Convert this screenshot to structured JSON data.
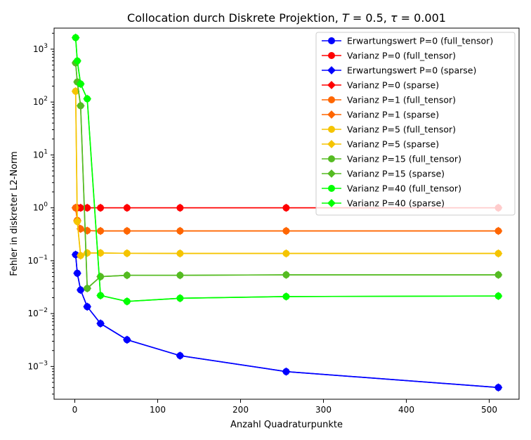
{
  "chart_data": {
    "type": "line",
    "title": "Collocation durch Diskrete Projektion, T = 0.5, τ = 0.001",
    "title_parts": {
      "prefix": "Collocation durch Diskrete Projektion, ",
      "T_sym": "T",
      "T_val": " = 0.5, ",
      "tau_sym": "τ",
      "tau_val": " = 0.001"
    },
    "xlabel": "Anzahl Quadraturpunkte",
    "ylabel": "Fehler in diskreter L2-Norm",
    "xscale": "linear",
    "yscale": "log",
    "xlim": [
      -25,
      536
    ],
    "ylim": [
      0.00024,
      2500
    ],
    "xticks": [
      0,
      100,
      200,
      300,
      400,
      500
    ],
    "yticks": [
      {
        "value": 0.001,
        "base": "10",
        "exp": "−3"
      },
      {
        "value": 0.01,
        "base": "10",
        "exp": "−2"
      },
      {
        "value": 0.1,
        "base": "10",
        "exp": "−1"
      },
      {
        "value": 1,
        "base": "10",
        "exp": "0"
      },
      {
        "value": 10,
        "base": "10",
        "exp": "1"
      },
      {
        "value": 100,
        "base": "10",
        "exp": "2"
      },
      {
        "value": 1000,
        "base": "10",
        "exp": "3"
      }
    ],
    "grid": false,
    "legend_position": "top-right",
    "series": [
      {
        "name": "Erwartungswert P=0 (full_tensor)",
        "color": "#0000ff",
        "marker": "circle",
        "x": [
          1,
          3,
          7,
          15,
          31,
          63,
          127,
          255,
          511
        ],
        "y": [
          0.13,
          0.058,
          0.028,
          0.0135,
          0.0065,
          0.0032,
          0.0016,
          0.0008,
          0.0004
        ]
      },
      {
        "name": "Varianz P=0 (full_tensor)",
        "color": "#ff0000",
        "marker": "circle",
        "x": [
          1,
          3,
          7,
          15,
          31,
          63,
          127,
          255,
          511
        ],
        "y": [
          1.0,
          1.0,
          1.0,
          1.0,
          1.0,
          1.0,
          1.0,
          1.0,
          1.0
        ]
      },
      {
        "name": "Erwartungswert P=0 (sparse)",
        "color": "#0000ff",
        "marker": "diamond",
        "x": [
          1,
          3,
          7,
          15,
          31,
          63,
          127,
          255,
          511
        ],
        "y": [
          0.13,
          0.058,
          0.028,
          0.0135,
          0.0065,
          0.0032,
          0.0016,
          0.0008,
          0.0004
        ]
      },
      {
        "name": "Varianz P=0 (sparse)",
        "color": "#ff0000",
        "marker": "diamond",
        "x": [
          1,
          3,
          7,
          15,
          31,
          63,
          127,
          255,
          511
        ],
        "y": [
          1.0,
          1.0,
          1.0,
          1.0,
          1.0,
          1.0,
          1.0,
          1.0,
          1.0
        ]
      },
      {
        "name": "Varianz P=1 (full_tensor)",
        "color": "#ff6600",
        "marker": "circle",
        "x": [
          1,
          3,
          7,
          15,
          31,
          63,
          127,
          255,
          511
        ],
        "y": [
          1.0,
          0.58,
          0.4,
          0.37,
          0.365,
          0.365,
          0.365,
          0.365,
          0.365
        ]
      },
      {
        "name": "Varianz P=1 (sparse)",
        "color": "#ff6600",
        "marker": "diamond",
        "x": [
          1,
          3,
          7,
          15,
          31,
          63,
          127,
          255,
          511
        ],
        "y": [
          1.0,
          0.58,
          0.4,
          0.37,
          0.365,
          0.365,
          0.365,
          0.365,
          0.365
        ]
      },
      {
        "name": "Varianz P=5 (full_tensor)",
        "color": "#f5c400",
        "marker": "circle",
        "x": [
          1,
          3,
          7,
          15,
          31,
          63,
          127,
          255,
          511
        ],
        "y": [
          160,
          0.55,
          0.125,
          0.14,
          0.14,
          0.138,
          0.137,
          0.137,
          0.137
        ]
      },
      {
        "name": "Varianz P=5 (sparse)",
        "color": "#f5c400",
        "marker": "diamond",
        "x": [
          1,
          3,
          7,
          15,
          31,
          63,
          127,
          255,
          511
        ],
        "y": [
          160,
          0.55,
          0.125,
          0.14,
          0.14,
          0.138,
          0.137,
          0.137,
          0.137
        ]
      },
      {
        "name": "Varianz P=15 (full_tensor)",
        "color": "#55bb22",
        "marker": "circle",
        "x": [
          1,
          3,
          7,
          15,
          31,
          63,
          127,
          255,
          511
        ],
        "y": [
          550,
          240,
          85,
          0.03,
          0.05,
          0.053,
          0.053,
          0.054,
          0.054
        ]
      },
      {
        "name": "Varianz P=15 (sparse)",
        "color": "#55bb22",
        "marker": "diamond",
        "x": [
          1,
          3,
          7,
          15,
          31,
          63,
          127,
          255,
          511
        ],
        "y": [
          550,
          240,
          85,
          0.03,
          0.05,
          0.053,
          0.053,
          0.054,
          0.054
        ]
      },
      {
        "name": "Varianz P=40 (full_tensor)",
        "color": "#00ff00",
        "marker": "circle",
        "x": [
          1,
          3,
          7,
          15,
          31,
          63,
          127,
          255,
          511
        ],
        "y": [
          1650,
          600,
          220,
          115,
          0.022,
          0.017,
          0.0195,
          0.021,
          0.0215
        ]
      },
      {
        "name": "Varianz P=40 (sparse)",
        "color": "#00ff00",
        "marker": "diamond",
        "x": [
          1,
          3,
          7,
          15,
          31,
          63,
          127,
          255,
          511
        ],
        "y": [
          1650,
          600,
          220,
          115,
          0.022,
          0.017,
          0.0195,
          0.021,
          0.0215
        ]
      }
    ]
  }
}
